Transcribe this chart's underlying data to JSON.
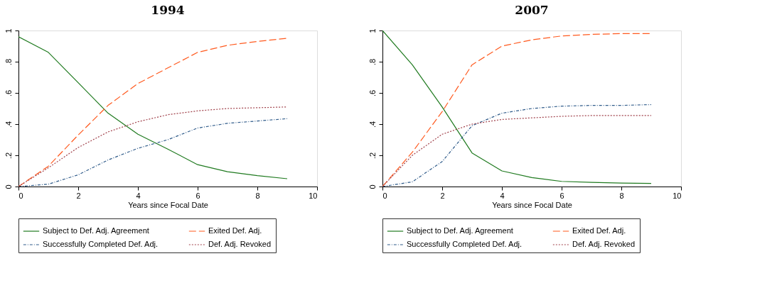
{
  "chart_data": [
    {
      "type": "line",
      "title": "1994",
      "xlabel": "Years since Focal Date",
      "xlim": [
        0,
        10
      ],
      "xticks": [
        0,
        2,
        4,
        6,
        8,
        10
      ],
      "ylim": [
        0,
        1
      ],
      "yticks": [
        0,
        {
          "value": 0.2,
          "label": ".2"
        },
        {
          "value": 0.4,
          "label": ".4"
        },
        {
          "value": 0.6,
          "label": ".6"
        },
        {
          "value": 0.8,
          "label": ".8"
        },
        1
      ],
      "grid": false,
      "legend": "bottom",
      "marker": "none",
      "x": [
        0,
        1,
        2,
        3,
        4,
        5,
        6,
        7,
        8,
        9
      ],
      "series": [
        {
          "name": "Subject to Def. Adj. Agreement",
          "color": "#1f7a1f",
          "line_style": "solid",
          "values": [
            0.96,
            0.86,
            0.665,
            0.47,
            0.335,
            0.24,
            0.14,
            0.095,
            0.07,
            0.05
          ]
        },
        {
          "name": "Exited Def. Adj.",
          "color": "#ff5a1f",
          "line_style": "dashed",
          "values": [
            0,
            0.13,
            0.33,
            0.52,
            0.66,
            0.76,
            0.86,
            0.905,
            0.93,
            0.95
          ]
        },
        {
          "name": "Successfully Completed Def. Adj.",
          "color": "#2f5b8a",
          "line_style": "dashdot",
          "values": [
            0,
            0.015,
            0.075,
            0.17,
            0.245,
            0.3,
            0.375,
            0.405,
            0.42,
            0.435
          ]
        },
        {
          "name": "Def. Adj. Revoked",
          "color": "#a0404a",
          "line_style": "dotted",
          "values": [
            0,
            0.12,
            0.25,
            0.35,
            0.415,
            0.46,
            0.485,
            0.5,
            0.505,
            0.51
          ]
        }
      ]
    },
    {
      "type": "line",
      "title": "2007",
      "xlabel": "Years since Focal Date",
      "xlim": [
        0,
        10
      ],
      "xticks": [
        0,
        2,
        4,
        6,
        8,
        10
      ],
      "ylim": [
        0,
        1
      ],
      "yticks": [
        0,
        {
          "value": 0.2,
          "label": ".2"
        },
        {
          "value": 0.4,
          "label": ".4"
        },
        {
          "value": 0.6,
          "label": ".6"
        },
        {
          "value": 0.8,
          "label": ".8"
        },
        1
      ],
      "grid": false,
      "legend": "bottom",
      "marker": "none",
      "x": [
        0,
        1,
        2,
        3,
        4,
        5,
        6,
        7,
        8,
        9
      ],
      "series": [
        {
          "name": "Subject to Def. Adj. Agreement",
          "color": "#1f7a1f",
          "line_style": "solid",
          "values": [
            1.0,
            0.78,
            0.51,
            0.215,
            0.1,
            0.057,
            0.033,
            0.027,
            0.022,
            0.02
          ]
        },
        {
          "name": "Exited Def. Adj.",
          "color": "#ff5a1f",
          "line_style": "dashed",
          "values": [
            0,
            0.22,
            0.48,
            0.78,
            0.9,
            0.94,
            0.965,
            0.975,
            0.98,
            0.98
          ]
        },
        {
          "name": "Successfully Completed Def. Adj.",
          "color": "#2f5b8a",
          "line_style": "dashdot",
          "values": [
            0,
            0.03,
            0.16,
            0.39,
            0.47,
            0.5,
            0.515,
            0.52,
            0.52,
            0.525
          ]
        },
        {
          "name": "Def. Adj. Revoked",
          "color": "#a0404a",
          "line_style": "dotted",
          "values": [
            0,
            0.2,
            0.335,
            0.4,
            0.43,
            0.44,
            0.45,
            0.455,
            0.455,
            0.455
          ]
        }
      ]
    }
  ]
}
